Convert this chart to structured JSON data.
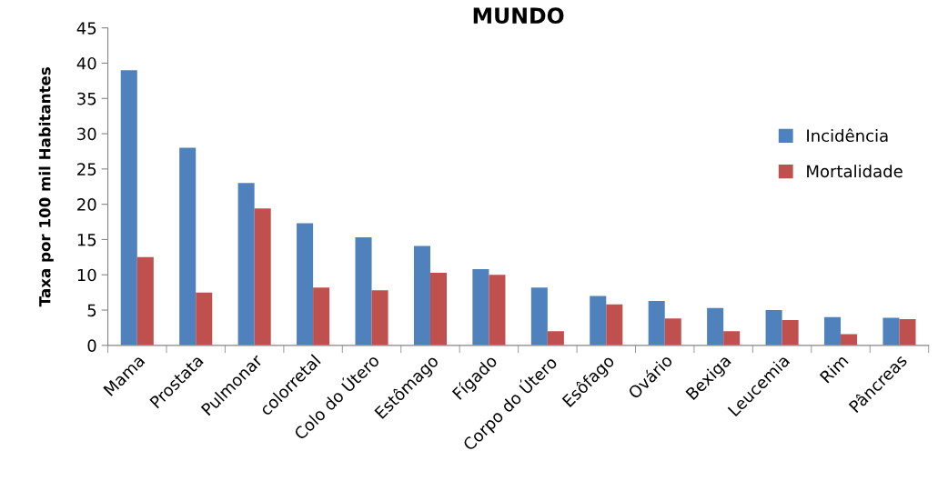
{
  "chart_data": {
    "type": "bar",
    "title": "MUNDO",
    "ylabel": "Taxa por 100 mil Habitantes",
    "categories": [
      "Mama",
      "Prostata",
      "Pulmonar",
      "colorretal",
      "Colo do Útero",
      "Estômago",
      "Fígado",
      "Corpo do Útero",
      "Esôfago",
      "Ovário",
      "Bexiga",
      "Leucemia",
      "Rim",
      "Pâncreas"
    ],
    "series": [
      {
        "name": "Incidência",
        "color": "#4f81bd",
        "values": [
          39,
          28,
          23,
          17.3,
          15.3,
          14.1,
          10.8,
          8.2,
          7.0,
          6.3,
          5.3,
          5.0,
          4.0,
          3.9
        ]
      },
      {
        "name": "Mortalidade",
        "color": "#c0504d",
        "values": [
          12.5,
          7.5,
          19.4,
          8.2,
          7.8,
          10.3,
          10.0,
          2.0,
          5.8,
          3.8,
          2.0,
          3.6,
          1.6,
          3.7
        ]
      }
    ],
    "ylim": [
      0,
      45
    ],
    "yticks": [
      0,
      5,
      10,
      15,
      20,
      25,
      30,
      35,
      40,
      45
    ],
    "grid": false,
    "legend": "right"
  }
}
